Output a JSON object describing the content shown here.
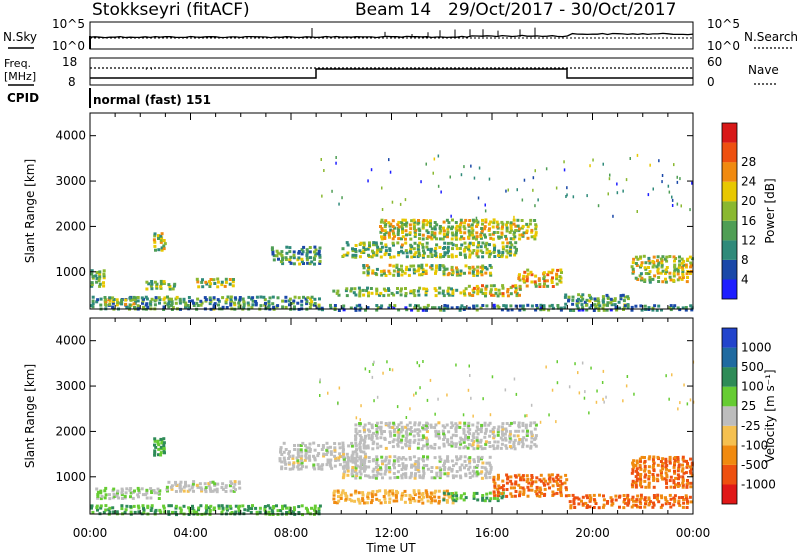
{
  "header": {
    "radar": "Stokkseyri (fitACF)",
    "beam": "Beam 14",
    "dates": "29/Oct/2017 - 30/Oct/2017"
  },
  "noise_panel": {
    "left_label": "N.Sky",
    "right_label": "N.Search",
    "left_ticks": [
      "10^5",
      "10^0"
    ],
    "right_ticks": [
      "10^5",
      "10^0"
    ]
  },
  "freq_panel": {
    "left_label_line1": "Freq.",
    "left_label_line2": "[MHz]",
    "right_label": "Nave",
    "left_ticks": [
      "18",
      "8"
    ],
    "right_ticks": [
      "60",
      "0"
    ]
  },
  "cpid": {
    "label": "CPID",
    "program": "normal (fast) 151"
  },
  "x_axis": {
    "label": "Time UT",
    "ticks": [
      "00:00",
      "04:00",
      "08:00",
      "12:00",
      "16:00",
      "20:00",
      "00:00"
    ]
  },
  "chart_data": [
    {
      "type": "heatmap",
      "title": "",
      "ylabel": "Slant Range [km]",
      "xlabel": "Time UT",
      "yticks": [
        "1000",
        "2000",
        "3000",
        "4000"
      ],
      "ylim": [
        180,
        4500
      ],
      "xlim": [
        "00:00",
        "24:00"
      ],
      "colorbar": {
        "label": "Power [dB]",
        "ticks": [
          "4",
          "8",
          "12",
          "16",
          "20",
          "24",
          "28"
        ],
        "colors": [
          "#1e1eff",
          "#1a48a8",
          "#2f8a7a",
          "#4f9e55",
          "#8ab830",
          "#e8c800",
          "#f08a10",
          "#ee5010",
          "#d81818"
        ]
      },
      "regions": [
        {
          "t0": 0.0,
          "t1": 0.6,
          "r0": 700,
          "r1": 1100,
          "level": 0.45
        },
        {
          "t0": 0.0,
          "t1": 9.2,
          "r0": 200,
          "r1": 500,
          "level": 0.35
        },
        {
          "t0": 2.2,
          "t1": 3.4,
          "r0": 650,
          "r1": 850,
          "level": 0.45
        },
        {
          "t0": 0.5,
          "t1": 2.0,
          "r0": 300,
          "r1": 500,
          "level": 0.55
        },
        {
          "t0": 2.5,
          "t1": 3.0,
          "r0": 1500,
          "r1": 1900,
          "level": 0.5
        },
        {
          "t0": 4.2,
          "t1": 5.8,
          "r0": 700,
          "r1": 900,
          "level": 0.5
        },
        {
          "t0": 7.2,
          "t1": 9.2,
          "r0": 1200,
          "r1": 1600,
          "level": 0.35
        },
        {
          "t0": 10.8,
          "t1": 16.0,
          "r0": 950,
          "r1": 1200,
          "level": 0.5
        },
        {
          "t0": 11.5,
          "t1": 17.8,
          "r0": 1750,
          "r1": 2200,
          "level": 0.55
        },
        {
          "t0": 10.0,
          "t1": 17.0,
          "r0": 1350,
          "r1": 1700,
          "level": 0.45
        },
        {
          "t0": 9.6,
          "t1": 15.0,
          "r0": 500,
          "r1": 700,
          "level": 0.45
        },
        {
          "t0": 15.0,
          "t1": 17.2,
          "r0": 500,
          "r1": 750,
          "level": 0.6
        },
        {
          "t0": 17.0,
          "t1": 18.8,
          "r0": 700,
          "r1": 1100,
          "level": 0.6
        },
        {
          "t0": 18.8,
          "t1": 21.5,
          "r0": 300,
          "r1": 550,
          "level": 0.35
        },
        {
          "t0": 21.5,
          "t1": 24.0,
          "r0": 800,
          "r1": 1400,
          "level": 0.55
        },
        {
          "t0": 9.0,
          "t1": 24.0,
          "r0": 180,
          "r1": 320,
          "level": 0.3
        }
      ]
    },
    {
      "type": "heatmap",
      "title": "",
      "ylabel": "Slant Range [km]",
      "xlabel": "Time UT",
      "yticks": [
        "1000",
        "2000",
        "3000",
        "4000"
      ],
      "ylim": [
        180,
        4500
      ],
      "xlim": [
        "00:00",
        "24:00"
      ],
      "colorbar": {
        "label": "Velocity [m s⁻¹]",
        "ticks": [
          "1000",
          "500",
          "100",
          "25",
          "-25",
          "-100",
          "-500",
          "-1000"
        ],
        "colors": [
          "#2244cc",
          "#1f6aa0",
          "#2e8b57",
          "#66cc33",
          "#bdbdbd",
          "#f5c050",
          "#f08a10",
          "#ee5010",
          "#e01818"
        ]
      },
      "regions": [
        {
          "t0": 0.0,
          "t1": 9.2,
          "r0": 200,
          "r1": 420,
          "vel": 100
        },
        {
          "t0": 0.2,
          "t1": 2.8,
          "r0": 550,
          "r1": 800,
          "vel": 25
        },
        {
          "t0": 2.5,
          "t1": 3.0,
          "r0": 1500,
          "r1": 1900,
          "vel": 100
        },
        {
          "t0": 3.0,
          "t1": 6.0,
          "r0": 700,
          "r1": 950,
          "vel": 0
        },
        {
          "t0": 7.5,
          "t1": 11.0,
          "r0": 1200,
          "r1": 1800,
          "vel": 0
        },
        {
          "t0": 10.5,
          "t1": 17.8,
          "r0": 1650,
          "r1": 2250,
          "vel": 0
        },
        {
          "t0": 10.0,
          "t1": 16.0,
          "r0": 1000,
          "r1": 1500,
          "vel": 0
        },
        {
          "t0": 9.6,
          "t1": 14.5,
          "r0": 450,
          "r1": 750,
          "vel": -100
        },
        {
          "t0": 14.0,
          "t1": 16.5,
          "r0": 500,
          "r1": 700,
          "vel": 100
        },
        {
          "t0": 16.0,
          "t1": 19.0,
          "r0": 600,
          "r1": 1100,
          "vel": -500
        },
        {
          "t0": 19.0,
          "t1": 24.0,
          "r0": 350,
          "r1": 650,
          "vel": -500
        },
        {
          "t0": 21.5,
          "t1": 24.0,
          "r0": 800,
          "r1": 1500,
          "vel": -500
        }
      ]
    }
  ]
}
